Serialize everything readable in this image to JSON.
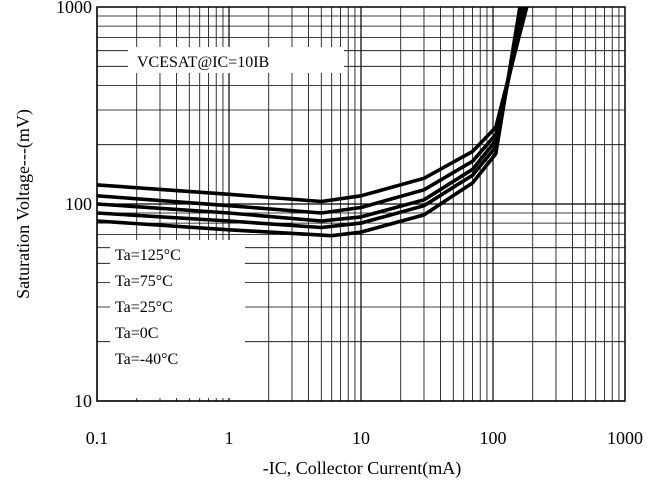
{
  "chart_data": {
    "type": "line",
    "title": "",
    "annotation": "VCESAT@IC=10IB",
    "xlabel": "-IC, Collector Current(mA)",
    "ylabel": "Saturation Voltage---(mV)",
    "xscale": "log",
    "yscale": "log",
    "xlim": [
      0.1,
      1000
    ],
    "ylim": [
      10,
      1000
    ],
    "x_tick_labels": [
      "0.1",
      "1",
      "10",
      "100",
      "1000"
    ],
    "y_tick_labels": [
      "10",
      "100",
      "1000"
    ],
    "grid": true,
    "legend_position": "bottom-left",
    "legend_entries": [
      "Ta=125°C",
      "Ta=75°C",
      "Ta=25°C",
      "Ta=0C",
      "Ta=-40°C"
    ],
    "series": [
      {
        "name": "Ta=125°C",
        "x": [
          0.1,
          1,
          5,
          10,
          30,
          70,
          105,
          180
        ],
        "y": [
          125,
          112,
          103,
          110,
          135,
          185,
          245,
          1000
        ]
      },
      {
        "name": "Ta=75°C",
        "x": [
          0.1,
          1,
          5,
          10,
          30,
          70,
          105,
          175
        ],
        "y": [
          110,
          98,
          90,
          96,
          118,
          165,
          225,
          1000
        ]
      },
      {
        "name": "Ta=25°C",
        "x": [
          0.1,
          1,
          5,
          10,
          30,
          70,
          105,
          170
        ],
        "y": [
          100,
          90,
          82,
          86,
          105,
          150,
          210,
          1000
        ]
      },
      {
        "name": "Ta=0C",
        "x": [
          0.1,
          1,
          5,
          10,
          30,
          70,
          105,
          165
        ],
        "y": [
          90,
          82,
          76,
          80,
          98,
          140,
          195,
          1000
        ]
      },
      {
        "name": "Ta=-40°C",
        "x": [
          0.1,
          1,
          6,
          10,
          30,
          70,
          105,
          160
        ],
        "y": [
          82,
          74,
          69,
          72,
          88,
          128,
          180,
          1000
        ]
      }
    ]
  }
}
